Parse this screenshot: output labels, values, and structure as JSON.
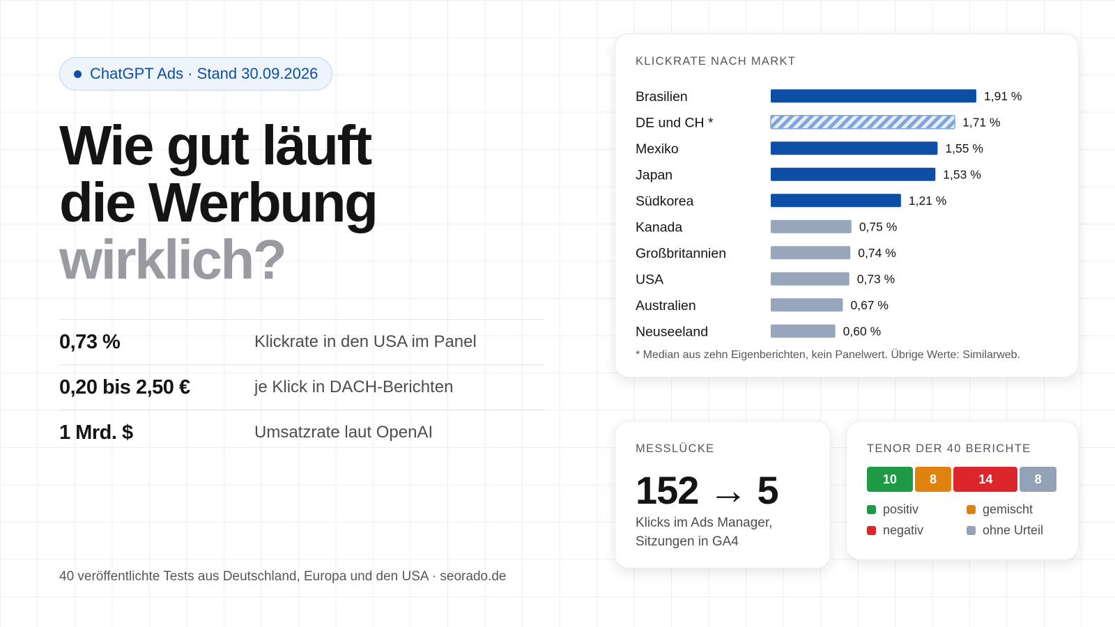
{
  "badge": "ChatGPT Ads · Stand 30.09.2026",
  "headline": {
    "line1": "Wie gut läuft",
    "line2": "die Werbung",
    "line3": "wirklich?"
  },
  "stats": [
    {
      "value": "0,73 %",
      "label": "Klickrate in den USA im Panel"
    },
    {
      "value": "0,20 bis 2,50 €",
      "label": "je Klick in DACH-Berichten"
    },
    {
      "value": "1 Mrd. $",
      "label": "Umsatzrate laut OpenAI"
    }
  ],
  "source": "40 veröffentlichte Tests aus Deutschland, Europa und den USA · seorado.de",
  "chart_title": "KLICKRATE NACH MARKT",
  "footnote": "* Median aus zehn Eigenberichten, kein Panelwert. Übrige Werte: Similarweb.",
  "chart_data": {
    "type": "bar",
    "orientation": "horizontal",
    "title": "KLICKRATE NACH MARKT",
    "categories": [
      "Brasilien",
      "DE und CH *",
      "Mexiko",
      "Japan",
      "Südkorea",
      "Kanada",
      "Großbritannien",
      "USA",
      "Australien",
      "Neuseeland"
    ],
    "values": [
      1.91,
      1.71,
      1.55,
      1.53,
      1.21,
      0.75,
      0.74,
      0.73,
      0.67,
      0.6
    ],
    "value_labels": [
      "1,91 %",
      "1,71 %",
      "1,55 %",
      "1,53 %",
      "1,21 %",
      "0,75 %",
      "0,74 %",
      "0,73 %",
      "0,67 %",
      "0,60 %"
    ],
    "bar_styles": [
      "solid",
      "hatched",
      "solid",
      "solid",
      "solid",
      "grey",
      "grey",
      "grey",
      "grey",
      "grey"
    ],
    "xlim": [
      0,
      1.91
    ],
    "grid": false,
    "colors": {
      "solid": "#0d4ea6",
      "hatched": "#7fa6da",
      "grey": "#98a6bc"
    }
  },
  "gap": {
    "title": "MESSLÜCKE",
    "value": "152 → 5",
    "description": "Klicks im Ads Manager, Sitzungen in GA4"
  },
  "tenor": {
    "title": "TENOR DER 40 BERICHTE",
    "segments": [
      {
        "label": "positiv",
        "value": 10,
        "color": "#1e9a45"
      },
      {
        "label": "gemischt",
        "value": 8,
        "color": "#e0820f"
      },
      {
        "label": "negativ",
        "value": 14,
        "color": "#dc262c"
      },
      {
        "label": "ohne Urteil",
        "value": 8,
        "color": "#94a2b8"
      }
    ]
  }
}
